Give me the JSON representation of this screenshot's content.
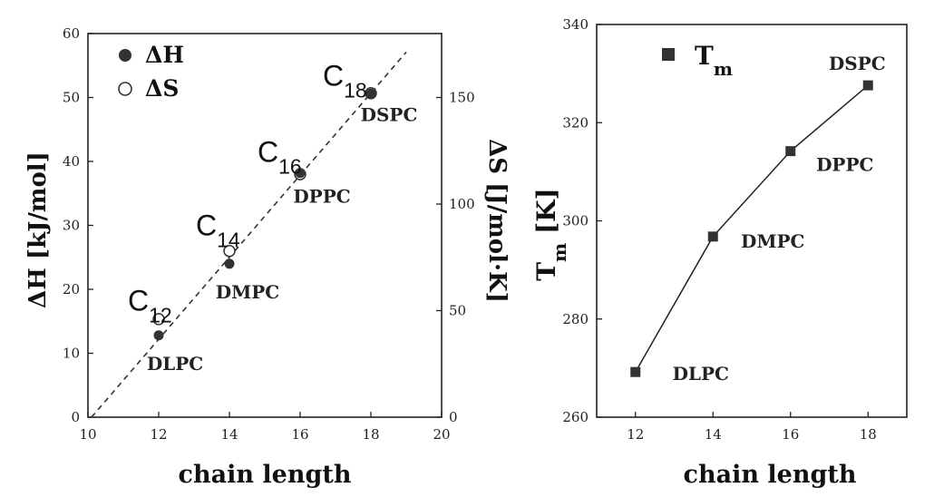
{
  "chart_data": [
    {
      "type": "scatter",
      "xlabel": "chain length",
      "ylabel": "ΔH [kJ/mol]",
      "y2label": "ΔS [J/mol·K]",
      "xlim": [
        10,
        20
      ],
      "ylim": [
        0,
        60
      ],
      "y2lim": [
        0,
        180
      ],
      "xticks": [
        10,
        12,
        14,
        16,
        18,
        20
      ],
      "yticks": [
        0,
        10,
        20,
        30,
        40,
        50,
        60
      ],
      "y2ticks": [
        0,
        50,
        100,
        150
      ],
      "legend": {
        "placement": "top-left",
        "entries": [
          "ΔH",
          "ΔS"
        ]
      },
      "series": [
        {
          "name": "ΔH",
          "marker": "filled-circle",
          "x": [
            12,
            14,
            16,
            18
          ],
          "y": [
            12.8,
            24.0,
            38.2,
            50.6
          ]
        },
        {
          "name": "ΔS",
          "marker": "open-circle",
          "axis": "y2",
          "x": [
            12,
            14,
            16,
            18
          ],
          "y": [
            46,
            78,
            114,
            152
          ]
        }
      ],
      "fit_line": {
        "style": "dashed",
        "x": [
          10.1,
          19
        ],
        "y": [
          0,
          57.1
        ]
      },
      "point_labels": [
        {
          "text": "DLPC",
          "x": 12,
          "y": 12.8
        },
        {
          "text": "DMPC",
          "x": 14,
          "y": 24.0
        },
        {
          "text": "DPPC",
          "x": 16,
          "y": 38.2
        },
        {
          "text": "DSPC",
          "x": 18,
          "y": 50.6
        }
      ],
      "chain_labels": [
        {
          "base": "C",
          "sub": "12",
          "x": 12,
          "y": 15.4
        },
        {
          "base": "C",
          "sub": "14",
          "x": 14,
          "y": 26.2
        },
        {
          "base": "C",
          "sub": "16",
          "x": 16,
          "y": 38.2
        },
        {
          "base": "C",
          "sub": "18",
          "x": 18,
          "y": 50.6
        }
      ]
    },
    {
      "type": "line",
      "xlabel": "chain length",
      "ylabel_base": "T",
      "ylabel_sub": "m",
      "ylabel_unit": "[K]",
      "xlim": [
        11,
        19
      ],
      "ylim": [
        260,
        340
      ],
      "xticks": [
        12,
        14,
        16,
        18
      ],
      "yticks": [
        260,
        280,
        300,
        320,
        340
      ],
      "legend": {
        "placement": "top-left",
        "base": "T",
        "sub": "m",
        "marker": "filled-square"
      },
      "series": [
        {
          "name": "Tm",
          "marker": "filled-square",
          "x": [
            12,
            14,
            16,
            18
          ],
          "y": [
            269.2,
            296.8,
            314.2,
            327.6
          ]
        }
      ],
      "point_labels": [
        {
          "text": "DLPC",
          "x": 12,
          "y": 269.2
        },
        {
          "text": "DMPC",
          "x": 14,
          "y": 296.8
        },
        {
          "text": "DPPC",
          "x": 16,
          "y": 314.2
        },
        {
          "text": "DSPC",
          "x": 18,
          "y": 327.6
        }
      ]
    }
  ]
}
